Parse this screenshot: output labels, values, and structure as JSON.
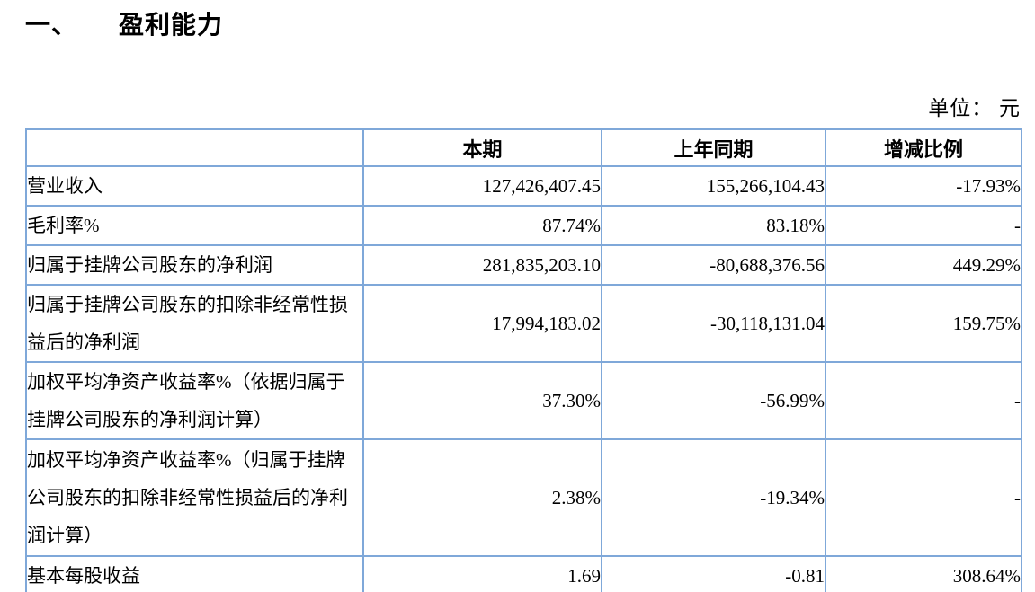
{
  "page": {
    "section_number": "一、",
    "title": "盈利能力",
    "unit_label": "单位： 元"
  },
  "colors": {
    "table_border": "#7fa8d9",
    "text": "#000000",
    "background": "#ffffff"
  },
  "table": {
    "columns": [
      "",
      "本期",
      "上年同期",
      "增减比例"
    ],
    "rows": [
      {
        "label": "营业收入",
        "current": "127,426,407.45",
        "prior": "155,266,104.43",
        "change": "-17.93%"
      },
      {
        "label": "毛利率%",
        "current": "87.74%",
        "prior": "83.18%",
        "change": "-"
      },
      {
        "label": "归属于挂牌公司股东的净利润",
        "current": "281,835,203.10",
        "prior": "-80,688,376.56",
        "change": "449.29%"
      },
      {
        "label": "归属于挂牌公司股东的扣除非经常性损益后的净利润",
        "current": "17,994,183.02",
        "prior": "-30,118,131.04",
        "change": "159.75%"
      },
      {
        "label": "加权平均净资产收益率%（依据归属于挂牌公司股东的净利润计算）",
        "current": "37.30%",
        "prior": "-56.99%",
        "change": "-"
      },
      {
        "label": "加权平均净资产收益率%（归属于挂牌公司股东的扣除非经常性损益后的净利润计算）",
        "current": "2.38%",
        "prior": "-19.34%",
        "change": "-"
      },
      {
        "label": "基本每股收益",
        "current": "1.69",
        "prior": "-0.81",
        "change": "308.64%"
      }
    ]
  }
}
